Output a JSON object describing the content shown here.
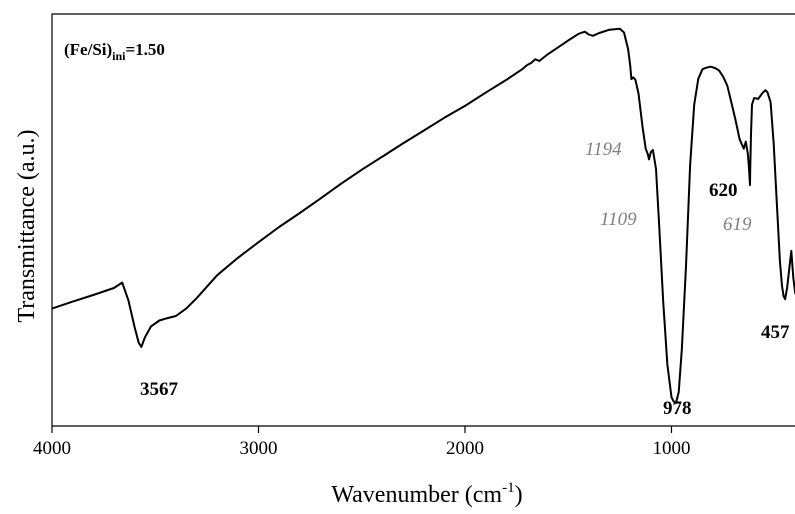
{
  "chart_data": {
    "type": "line",
    "title": "",
    "sample_label": {
      "prefix": "(Fe/Si)",
      "subscript": "ini",
      "suffix": "=1.50"
    },
    "xlabel": {
      "text": "Wavenumber (cm",
      "superscript": "-1",
      "suffix": ")"
    },
    "ylabel": "Transmittance (a.u.)",
    "xlim": [
      4000,
      400
    ],
    "x_reversed": true,
    "ylim": [
      0,
      100
    ],
    "y_ticks_shown": false,
    "x_ticks": [
      4000,
      3000,
      2000,
      1000
    ],
    "x_tick_labels": [
      "4000",
      "3000",
      "2000",
      "1000"
    ],
    "grid": false,
    "legend": "none",
    "series": [
      {
        "color": "#000000",
        "x": [
          4000,
          3900,
          3800,
          3700,
          3660,
          3630,
          3600,
          3580,
          3567,
          3550,
          3520,
          3480,
          3440,
          3400,
          3350,
          3300,
          3200,
          3100,
          3000,
          2900,
          2800,
          2700,
          2600,
          2500,
          2400,
          2300,
          2200,
          2100,
          2000,
          1900,
          1800,
          1720,
          1700,
          1680,
          1660,
          1640,
          1600,
          1500,
          1450,
          1420,
          1400,
          1380,
          1350,
          1300,
          1250,
          1230,
          1210,
          1200,
          1194,
          1185,
          1175,
          1160,
          1140,
          1125,
          1115,
          1109,
          1100,
          1090,
          1075,
          1060,
          1040,
          1020,
          1000,
          990,
          978,
          965,
          950,
          930,
          910,
          890,
          870,
          850,
          830,
          810,
          790,
          770,
          750,
          730,
          710,
          690,
          670,
          650,
          640,
          630,
          625,
          620,
          619,
          615,
          610,
          600,
          580,
          560,
          545,
          535,
          520,
          505,
          490,
          475,
          465,
          457,
          450,
          440,
          430,
          420,
          410,
          400
        ],
        "y": [
          28.5,
          30.2,
          31.8,
          33.5,
          34.8,
          30.5,
          24.0,
          20.2,
          19.2,
          21.5,
          24.2,
          25.6,
          26.2,
          26.7,
          28.5,
          31.0,
          36.6,
          40.8,
          44.6,
          48.3,
          51.7,
          55.2,
          58.8,
          62.2,
          65.4,
          68.6,
          71.7,
          74.8,
          77.7,
          80.9,
          84.0,
          86.7,
          87.6,
          88.1,
          89.0,
          88.6,
          90.2,
          93.6,
          95.2,
          95.7,
          95.0,
          94.7,
          95.4,
          96.2,
          96.4,
          95.5,
          91.5,
          87.5,
          84.2,
          84.6,
          84.0,
          80.7,
          72.5,
          67.3,
          66.0,
          64.7,
          66.5,
          67.0,
          62.4,
          49.0,
          30.2,
          14.8,
          7.0,
          6.0,
          5.6,
          8.2,
          18.5,
          38.8,
          63.2,
          78.0,
          84.3,
          86.6,
          87.0,
          87.2,
          86.9,
          86.3,
          84.8,
          82.6,
          78.5,
          74.3,
          69.6,
          67.3,
          69.0,
          66.0,
          62.8,
          58.5,
          62.1,
          70.8,
          78.0,
          79.6,
          79.4,
          80.8,
          81.5,
          81.0,
          78.6,
          68.5,
          54.2,
          40.0,
          34.0,
          31.5,
          30.8,
          33.5,
          38.0,
          42.5,
          36.0,
          32.0
        ]
      }
    ],
    "annotations": [
      {
        "text": "3567",
        "style": "bold"
      },
      {
        "text": "978",
        "style": "bold"
      },
      {
        "text": "620",
        "style": "bold"
      },
      {
        "text": "457",
        "style": "bold"
      },
      {
        "text": "1194",
        "style": "italic-grey"
      },
      {
        "text": "1109",
        "style": "italic-grey"
      },
      {
        "text": "619",
        "style": "italic-grey"
      }
    ]
  }
}
